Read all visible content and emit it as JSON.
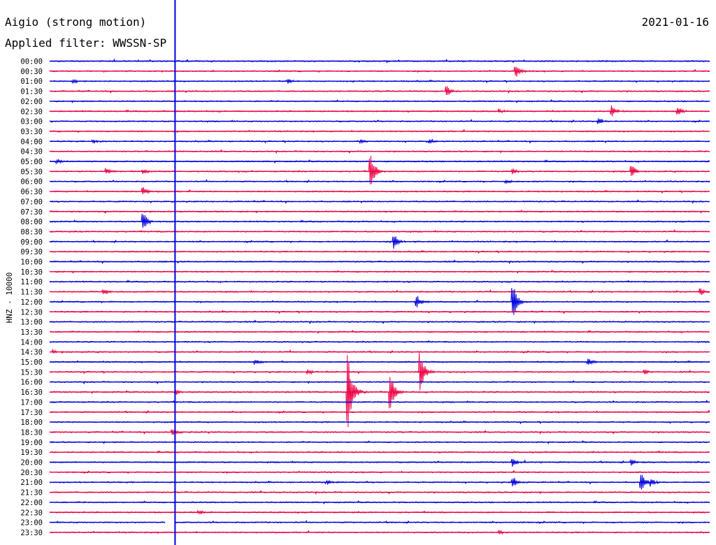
{
  "header": {
    "station": "Aigio (strong motion)",
    "date": "2021-01-16",
    "filter": "Applied filter: WWSSN-SP"
  },
  "chart_data": {
    "type": "line",
    "subtype": "helicorder",
    "title": "Aigio (strong motion)",
    "subtitle": "Applied filter: WWSSN-SP",
    "date": "2021-01-16",
    "ylabel": "HNZ - 10000",
    "row_labels": [
      "00:00",
      "00:30",
      "01:00",
      "01:30",
      "02:00",
      "02:30",
      "03:00",
      "03:30",
      "04:00",
      "04:30",
      "05:00",
      "05:30",
      "06:00",
      "06:30",
      "07:00",
      "07:30",
      "08:00",
      "08:30",
      "09:00",
      "09:30",
      "10:00",
      "10:30",
      "11:00",
      "11:30",
      "12:00",
      "12:30",
      "13:00",
      "13:30",
      "14:00",
      "14:30",
      "15:00",
      "15:30",
      "16:00",
      "16:30",
      "17:00",
      "17:30",
      "18:00",
      "18:30",
      "19:00",
      "19:30",
      "20:00",
      "20:30",
      "21:00",
      "21:30",
      "22:00",
      "22:30",
      "23:00",
      "23:30"
    ],
    "row_minutes": 30,
    "colors": [
      "#0000dd",
      "#ee0044"
    ],
    "current_time_fraction": 0.19,
    "gap": {
      "row": "23:00",
      "start_fraction": 0.175,
      "end_fraction": 0.19
    },
    "events": [
      {
        "row": "00:30",
        "t": 0.705,
        "amp": 9
      },
      {
        "row": "01:00",
        "t": 0.035,
        "amp": 3
      },
      {
        "row": "01:00",
        "t": 0.36,
        "amp": 3
      },
      {
        "row": "01:30",
        "t": 0.6,
        "amp": 8
      },
      {
        "row": "02:30",
        "t": 0.85,
        "amp": 8
      },
      {
        "row": "02:30",
        "t": 0.95,
        "amp": 7
      },
      {
        "row": "02:30",
        "t": 0.68,
        "amp": 3
      },
      {
        "row": "03:00",
        "t": 0.83,
        "amp": 5
      },
      {
        "row": "04:00",
        "t": 0.065,
        "amp": 3
      },
      {
        "row": "04:00",
        "t": 0.47,
        "amp": 3
      },
      {
        "row": "04:00",
        "t": 0.575,
        "amp": 3
      },
      {
        "row": "05:00",
        "t": 0.01,
        "amp": 3
      },
      {
        "row": "05:30",
        "t": 0.485,
        "amp": 22
      },
      {
        "row": "05:30",
        "t": 0.085,
        "amp": 4
      },
      {
        "row": "05:30",
        "t": 0.14,
        "amp": 4
      },
      {
        "row": "05:30",
        "t": 0.7,
        "amp": 4
      },
      {
        "row": "05:30",
        "t": 0.88,
        "amp": 10
      },
      {
        "row": "06:00",
        "t": 0.69,
        "amp": 3
      },
      {
        "row": "06:30",
        "t": 0.14,
        "amp": 6
      },
      {
        "row": "08:00",
        "t": 0.14,
        "amp": 14
      },
      {
        "row": "09:00",
        "t": 0.52,
        "amp": 11
      },
      {
        "row": "11:30",
        "t": 0.08,
        "amp": 4
      },
      {
        "row": "11:30",
        "t": 0.985,
        "amp": 5
      },
      {
        "row": "12:00",
        "t": 0.555,
        "amp": 9
      },
      {
        "row": "12:00",
        "t": 0.7,
        "amp": 28
      },
      {
        "row": "14:30",
        "t": 0.005,
        "amp": 3
      },
      {
        "row": "15:00",
        "t": 0.31,
        "amp": 4
      },
      {
        "row": "15:00",
        "t": 0.815,
        "amp": 5
      },
      {
        "row": "15:30",
        "t": 0.56,
        "amp": 28
      },
      {
        "row": "15:30",
        "t": 0.39,
        "amp": 4
      },
      {
        "row": "15:30",
        "t": 0.9,
        "amp": 4
      },
      {
        "row": "16:30",
        "t": 0.45,
        "amp": 62
      },
      {
        "row": "16:30",
        "t": 0.515,
        "amp": 25
      },
      {
        "row": "16:30",
        "t": 0.19,
        "amp": 4
      },
      {
        "row": "18:30",
        "t": 0.185,
        "amp": 5
      },
      {
        "row": "20:00",
        "t": 0.7,
        "amp": 6
      },
      {
        "row": "20:00",
        "t": 0.88,
        "amp": 5
      },
      {
        "row": "21:00",
        "t": 0.7,
        "amp": 8
      },
      {
        "row": "21:00",
        "t": 0.895,
        "amp": 12
      },
      {
        "row": "21:00",
        "t": 0.91,
        "amp": 5
      },
      {
        "row": "21:00",
        "t": 0.42,
        "amp": 3
      },
      {
        "row": "22:30",
        "t": 0.225,
        "amp": 3
      },
      {
        "row": "23:30",
        "t": 0.68,
        "amp": 3
      }
    ]
  }
}
